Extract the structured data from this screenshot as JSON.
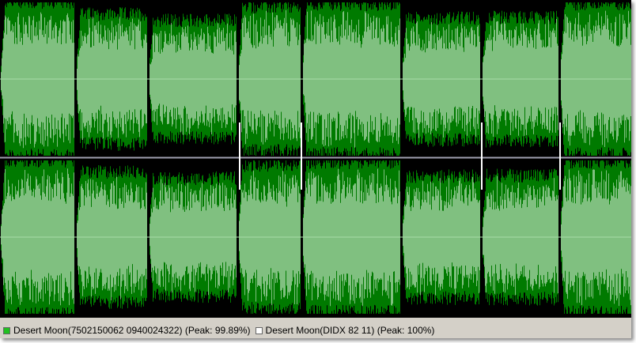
{
  "legend": [
    {
      "label": "Desert Moon(7502150062 0940024322) (Peak: 99.89%)",
      "color": "#20c020"
    },
    {
      "label": "Desert Moon(DIDX 82 11) (Peak: 100%)",
      "color": "#ffffff"
    }
  ]
}
